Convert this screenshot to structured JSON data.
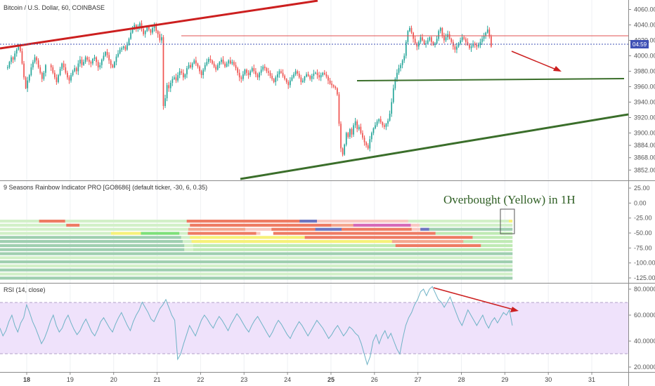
{
  "chart_data": [
    {
      "type": "candlestick",
      "title": "Bitcoin / U.S. Dollar, 60, COINBASE",
      "ylim": [
        3845,
        4065
      ],
      "y_ticks": [
        "4060.00",
        "4040.00",
        "4020.00",
        "4000.00",
        "3980.00",
        "3960.00",
        "3940.00",
        "3920.00",
        "3900.00",
        "3884.00",
        "3868.00",
        "3852.00"
      ],
      "current_price_label": "04:59",
      "colors": {
        "up": "#26a69a",
        "down": "#ef5350"
      },
      "close_series_by_day": [
        {
          "day": 18,
          "closes": [
            3985,
            3992,
            3998,
            3995,
            4003,
            4008,
            4012,
            4006,
            3990,
            3972,
            3958,
            3968,
            3975,
            3985,
            3992,
            3998,
            3994,
            3985,
            3978,
            3970,
            3978,
            3988
          ]
        },
        {
          "day": 19,
          "closes": [
            3985,
            3978,
            3972,
            3966,
            3975,
            3983,
            3990,
            3985,
            3978,
            3972,
            3968,
            3975,
            3980,
            3984,
            3980,
            3990,
            3995,
            3988,
            3992,
            3998,
            3995,
            3992,
            3990,
            3996
          ]
        },
        {
          "day": 20,
          "closes": [
            3998,
            3992,
            3985,
            3988,
            3995,
            4000,
            4005,
            4001,
            3994,
            3988,
            3985,
            3992,
            3999,
            4003,
            4008,
            4010,
            4012,
            4008,
            4014,
            4022,
            4030,
            4036,
            4040,
            4035
          ]
        },
        {
          "day": 21,
          "closes": [
            4038,
            4042,
            4035,
            4028,
            4032,
            4038,
            4034,
            4030,
            4036,
            4040,
            4032,
            4028,
            4020,
            4024,
            3935,
            3945,
            3962,
            3958,
            3965,
            3970,
            3972,
            3968,
            3975,
            3980
          ]
        },
        {
          "day": 22,
          "closes": [
            3978,
            3972,
            3976,
            3984,
            3988,
            3985,
            3990,
            3994,
            3990,
            3986,
            3980,
            3975,
            3982,
            3988,
            3992,
            3996,
            3994,
            3990,
            3986,
            3982,
            3988,
            3992,
            3995,
            3990
          ]
        },
        {
          "day": 23,
          "closes": [
            3986,
            3990,
            3994,
            3990,
            3992,
            3988,
            3984,
            3978,
            3972,
            3970,
            3976,
            3982,
            3978,
            3975,
            3980,
            3984,
            3980,
            3976,
            3972,
            3978,
            3982,
            3986,
            3984,
            3980
          ]
        },
        {
          "day": 24,
          "closes": [
            3978,
            3974,
            3970,
            3966,
            3972,
            3976,
            3980,
            3978,
            3974,
            3970,
            3966,
            3962,
            3968,
            3972,
            3976,
            3980,
            3977,
            3972,
            3966,
            3968,
            3973,
            3976,
            3974,
            3970
          ]
        },
        {
          "day": 25,
          "closes": [
            3974,
            3977,
            3978,
            3975,
            3972,
            3975,
            3978,
            3976,
            3973,
            3968,
            3964,
            3962,
            3960,
            3958,
            3950,
            3912,
            3880,
            3872,
            3885,
            3900,
            3895,
            3905,
            3898,
            3910
          ]
        },
        {
          "day": 26,
          "closes": [
            3915,
            3905,
            3908,
            3900,
            3894,
            3888,
            3884,
            3880,
            3892,
            3900,
            3906,
            3910,
            3915,
            3918,
            3914,
            3910,
            3908,
            3912,
            3916,
            3925,
            3940,
            3958,
            3970,
            3978
          ]
        },
        {
          "day": 27,
          "closes": [
            3984,
            3988,
            3994,
            4000,
            4018,
            4032,
            4036,
            4030,
            4022,
            4016,
            4012,
            4018,
            4024,
            4020,
            4015,
            4016,
            4020,
            4024,
            4018,
            4014,
            4016,
            4022,
            4032,
            4036
          ]
        },
        {
          "day": 28,
          "closes": [
            4026,
            4020,
            4024,
            4028,
            4022,
            4018,
            4012,
            4008,
            4012,
            4016,
            4020,
            4024,
            4022,
            4018,
            4014,
            4010,
            4012,
            4016,
            4014,
            4012,
            4014,
            4018,
            4022,
            4026
          ]
        },
        {
          "day": 29,
          "closes": [
            4030,
            4034,
            4025,
            4012
          ]
        }
      ],
      "annotations": {
        "resistance_price": 4022,
        "current_price": 4012,
        "support_price": 3969
      }
    },
    {
      "type": "heatmap",
      "title": "9 Seasons Rainbow Indicator PRO [GO8686] (default ticker, -30, 6, 0.35)",
      "y_ticks": [
        "25.00",
        "0.00",
        "-25.00",
        "-50.00",
        "-75.00",
        "-100.00",
        "-125.00"
      ],
      "annotation": "Overbought (Yellow) in 1H",
      "palette": {
        "g": "#9fcfb0",
        "l": "#d2f0c8",
        "L": "#bfeab4",
        "s": "#f4a78f",
        "S": "#ee7b63",
        "p": "#f9c9c2",
        "b": "#6d75c0",
        "m": "#d66ab8",
        "y": "#f6f17a",
        "G": "#7ee07a",
        "w": "#ffffff"
      },
      "rows": [
        "lllllllllSSSSSSllllllllllllllllllllllllllllSSSSSSSSSSSSSSSSSSSSSSSSSSbbbbpppppppppppppppppppppllllllllllllllllllllllll",
        "lllllllllllllllSSSlllllllllllllllllllllllllSSSSSSSSSSSSSSSSSSSSSSSSSSSSSSSSsssssmmmmmmmmmmmmmpplllllllllllllllllllll",
        "lllllllllllllllllllllllllllllllllllllllllllsssssssssssssppppppSSSSSSSSSSbbbbbbSSSSSSSSSSSSSSSSppbbggggggggggggggggggg",
        "llllllllllllllllllllllllllyyyyyyyGGGGGGGGGllSSSSSSSSSSSSSSSSpwwwSSSSSSSSSSSSSSSSSSSSSSSSSSSSSSSSSSSSSSLLLLLLLLLLLLLLLLLL",
        "gggggggggggggggggggggggggggggggggggggggggllyyyyyyyyyyyyyyyyyyyyyyyyyySSSSSSSSSSSSSSSSSSSSSSSSSSSSSSSSSSSSSSLLLLLLLLL",
        "gggggggggggggggggggggggggggggggggggggggggllyyyyyyyyyyyyyyyyyyyyyyyyyyyyyyyyyyyyyyyyyyyyyssssssssssssssssLLLLLLLLLLL",
        "gggggggggggggggggggggggggggggggggggggggggllLLLLLLLLLLLLLLLLLLLLLLLLLLLLLLLLLLLLLLLLLLLLLSSSSSSSSSSSSSSSSSSSLLLLLLL",
        "gggggggggggggggggggggggggggggggggggggggggllLLLLLLLLLLLLLLLLLLLLLLLLLLLLLLLLLLLLLLLLLLLLLLLLLLLLLLLLLLLLLLLLLLLLLLL",
        "gggggggggggggggggggggggggggggggggggggggggggggggggggggggggggggggggggggggggggggggggggggggggggggggggggggggggggggggggg",
        "llllllllllllllllllllllllllllllllllllllllllllllllllllllllllllllllllllllllllllllllllllllllllllllllllllllllllllllllll",
        "gggggggggggggggggggggggggggggggggggggggggggggggggggggggggggggggggggggggggggggggggggggggggggggggggggggggggggggggggg",
        "llllllllllllllllllllllllllllllllllllllllllllllllllllllllllllllllllllllllllllllllllllllllllllllllllllllllllllllllll",
        "gggggggggggggggggggggggggggggggggggggggggggggggggggggggggggggggggggggggggggggggggggggggggggggggggggggggggggggggggg",
        "llllllllllllllllllllllllllllllllllllllllllllllllllllllllllllllllllllllllllllllllllllllllllllllllllllllllllllllllll",
        "gggggggggggggggggggggggggggggggggggggggggggggggggggggggggggggggggggggggggggggggggggggggggggggggggggggggggggggggggg"
      ]
    },
    {
      "type": "line",
      "title": "RSI (14, close)",
      "ylim": [
        15,
        85
      ],
      "y_ticks": [
        "80.0000",
        "60.0000",
        "40.0000",
        "20.0000"
      ],
      "band": [
        30,
        70
      ],
      "color": "#6fb3c6",
      "band_color": "#e6d6f7",
      "values": [
        50,
        44,
        48,
        55,
        60,
        52,
        47,
        54,
        58,
        68,
        62,
        55,
        50,
        44,
        38,
        42,
        48,
        55,
        60,
        52,
        47,
        50,
        56,
        60,
        54,
        49,
        45,
        48,
        53,
        57,
        52,
        47,
        44,
        49,
        55,
        58,
        54,
        50,
        47,
        53,
        58,
        62,
        57,
        52,
        48,
        55,
        60,
        64,
        70,
        66,
        62,
        57,
        55,
        60,
        65,
        68,
        72,
        66,
        60,
        56,
        26,
        30,
        38,
        45,
        52,
        48,
        44,
        50,
        56,
        60,
        57,
        53,
        50,
        55,
        59,
        56,
        52,
        48,
        53,
        57,
        61,
        58,
        54,
        50,
        47,
        52,
        56,
        59,
        55,
        51,
        47,
        43,
        47,
        52,
        56,
        53,
        49,
        45,
        42,
        47,
        51,
        55,
        52,
        48,
        44,
        48,
        52,
        56,
        53,
        50,
        46,
        42,
        45,
        49,
        52,
        48,
        44,
        47,
        51,
        49,
        46,
        44,
        38,
        30,
        22,
        28,
        40,
        45,
        38,
        44,
        48,
        42,
        46,
        40,
        34,
        30,
        42,
        52,
        58,
        62,
        68,
        72,
        78,
        80,
        75,
        80,
        82,
        77,
        72,
        70,
        66,
        70,
        74,
        68,
        62,
        56,
        52,
        58,
        64,
        60,
        56,
        52,
        56,
        60,
        54,
        50,
        55,
        58,
        54,
        58,
        62,
        60,
        64,
        52
      ]
    }
  ],
  "x_axis": {
    "labels": [
      "18",
      "19",
      "20",
      "21",
      "22",
      "23",
      "24",
      "25",
      "26",
      "27",
      "28",
      "29",
      "30",
      "31"
    ],
    "bold": [
      "18",
      "25"
    ]
  }
}
